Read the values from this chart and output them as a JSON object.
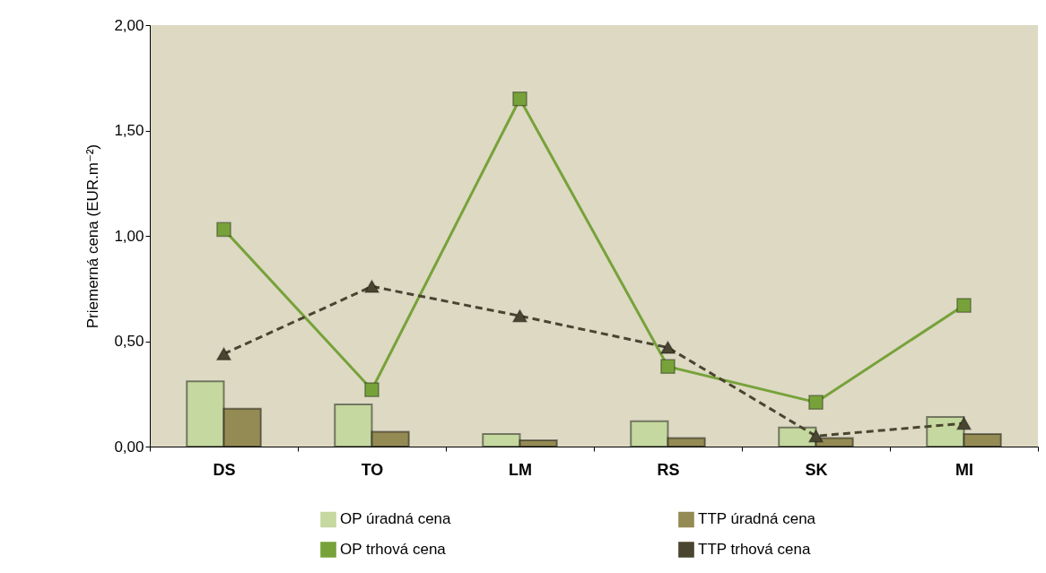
{
  "chart_data": {
    "type": "bar",
    "ylabel": "Priemerná cena (EUR.m⁻²)",
    "categories": [
      "DS",
      "TO",
      "LM",
      "RS",
      "SK",
      "MI"
    ],
    "series": [
      {
        "name": "OP úradná cena",
        "color": "#c5d89f",
        "values": [
          0.31,
          0.2,
          0.06,
          0.12,
          0.09,
          0.14
        ]
      },
      {
        "name": "TTP úradná cena",
        "color": "#948a54",
        "values": [
          0.18,
          0.07,
          0.03,
          0.04,
          0.04,
          0.06
        ]
      },
      {
        "name": "OP trhová cena",
        "type": "line",
        "color": "#77a23a",
        "marker": "square",
        "line_style": "solid",
        "values": [
          1.03,
          0.27,
          1.65,
          0.38,
          0.21,
          0.67
        ]
      },
      {
        "name": "TTP trhová cena",
        "type": "line",
        "color": "#4a4530",
        "marker": "triangle",
        "line_style": "dashed",
        "values": [
          0.44,
          0.76,
          0.62,
          0.47,
          0.05,
          0.11
        ]
      }
    ],
    "ylim": [
      0,
      2
    ],
    "yticks": [
      {
        "value": 0,
        "label": "0,00"
      },
      {
        "value": 0.5,
        "label": "0,50"
      },
      {
        "value": 1,
        "label": "1,00"
      },
      {
        "value": 1.5,
        "label": "1,50"
      },
      {
        "value": 2,
        "label": "2,00"
      }
    ],
    "grid": false,
    "legend": "bottom"
  }
}
